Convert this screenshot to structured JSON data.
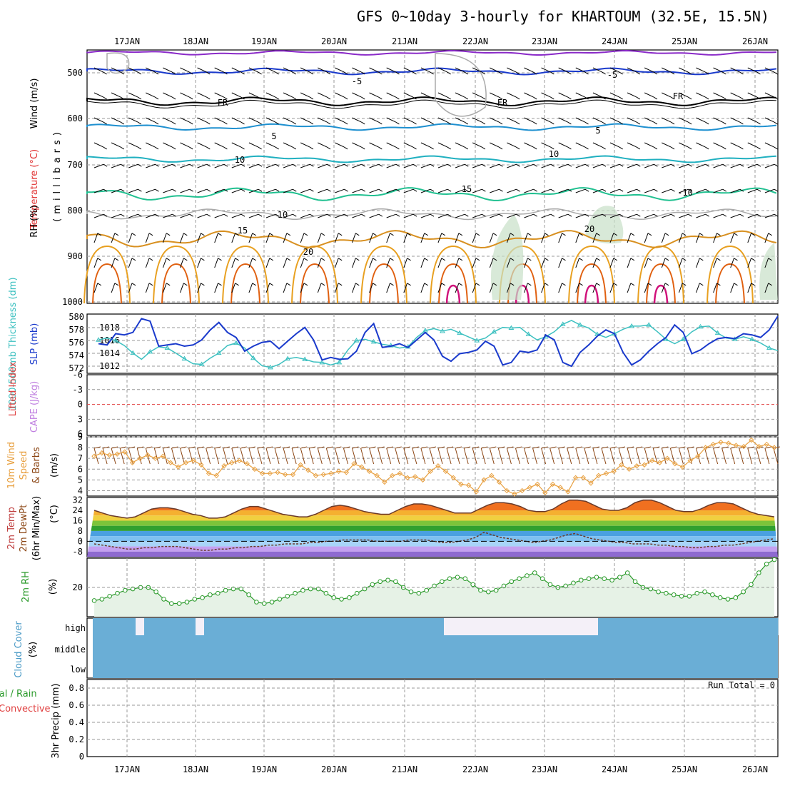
{
  "title": "GFS 0~10day 3-hourly for KHARTOUM (32.5E, 15.5N)",
  "days": [
    "17JAN",
    "18JAN",
    "19JAN",
    "20JAN",
    "21JAN",
    "22JAN",
    "23JAN",
    "24JAN",
    "25JAN",
    "26JAN"
  ],
  "colors": {
    "grid": "#aaaaaa",
    "temp_warm": "#e8a020",
    "temp_cool": "#1e90d0",
    "slp": "#1a3acc",
    "thickness": "#3cc0c0",
    "wind10": "#e8a040",
    "rh2m": "#2a9a2a",
    "cloud": "#6aaed6",
    "cape": "#c080e0",
    "lifted": "#e04040"
  },
  "panels": {
    "upper": {
      "ylabel1": "Wind (m/s)",
      "ylabel_temp": "Temperature (°C)",
      "ylabel_rh": "RH (%)",
      "ylabel_mb": "(millibars)",
      "levels": [
        "500",
        "600",
        "700",
        "800",
        "900",
        "1000"
      ],
      "contour_labels": [
        "-5",
        "FR",
        "FR",
        "FR",
        "-5",
        "5",
        "5",
        "10",
        "10",
        "15",
        "15",
        "20",
        "20",
        "-10",
        "10"
      ]
    },
    "slp": {
      "ylabel_left": "1000-500mb Thickness (dm)",
      "ylabel_right": "SLP (mb)",
      "left_ticks": [
        "580",
        "578",
        "576",
        "574",
        "572"
      ],
      "right_ticks": [
        "1018",
        "1016",
        "1014",
        "1012"
      ]
    },
    "cape": {
      "ylabel1": "Lifted Index",
      "ylabel2": "CAPE (J/kg)",
      "ticks": [
        "-6",
        "-3",
        "0",
        "3",
        "6"
      ]
    },
    "wind": {
      "ylabel1": "10m Wind",
      "ylabel2": "Speed",
      "ylabel3": "& Barbs",
      "unit": "(m/s)",
      "ticks": [
        "9",
        "8",
        "7",
        "6",
        "5",
        "4"
      ]
    },
    "temp": {
      "ylabel1": "2m Temp",
      "ylabel2": "2m DewPt",
      "ylabel3": "(6hr Min/Max)",
      "unit": "(°C)",
      "ticks": [
        "32",
        "24",
        "16",
        "8",
        "0",
        "-8"
      ]
    },
    "rh": {
      "ylabel": "2m RH",
      "unit": "(%)",
      "ticks": [
        "20"
      ]
    },
    "cloud": {
      "ylabel": "Cloud Cover",
      "unit": "(%)",
      "levels": [
        "high",
        "middle",
        "low"
      ]
    },
    "precip": {
      "ylabel1": "Total / Rain",
      "ylabel2": "Convective",
      "ylabel3": "3hr Precip (mm)",
      "ticks": [
        "0.8",
        "0.6",
        "0.4",
        "0.2",
        "0"
      ],
      "run_total": "Run Total = 0"
    }
  },
  "chart_data": [
    {
      "type": "line",
      "name": "1000-500mb Thickness (dm)",
      "units": "dm",
      "ylim": [
        571,
        580
      ],
      "values": [
        576.1,
        576.4,
        576.0,
        575.2,
        574.0,
        573.0,
        574.2,
        575.0,
        574.8,
        574.0,
        573.1,
        572.3,
        572.2,
        573.2,
        574.0,
        575.2,
        575.6,
        574.8,
        573.2,
        572.0,
        571.7,
        572.2,
        573.1,
        573.3,
        573.0,
        572.6,
        572.5,
        572.1,
        572.5,
        574.5,
        576.0,
        576.2,
        575.8,
        575.4,
        575.2,
        574.8,
        575.0,
        576.5,
        577.6,
        577.9,
        577.5,
        577.8,
        577.2,
        576.6,
        576.0,
        576.4,
        577.4,
        578.1,
        578.0,
        578.1,
        577.0,
        576.1,
        576.6,
        577.4,
        578.6,
        579.2,
        578.5,
        578.0,
        577.0,
        576.5,
        577.1,
        577.8,
        578.3,
        578.3,
        578.5,
        577.4,
        576.2,
        575.5,
        576.2,
        577.4,
        578.2,
        578.3,
        577.2,
        576.4,
        576.2,
        576.6,
        576.2,
        575.6,
        574.8,
        574.4
      ]
    },
    {
      "type": "line",
      "name": "SLP (mb)",
      "units": "mb",
      "ylim": [
        1010.5,
        1019.5
      ],
      "values": [
        1015.0,
        1014.8,
        1016.6,
        1016.4,
        1016.8,
        1019.0,
        1018.6,
        1014.6,
        1014.8,
        1015.0,
        1014.6,
        1014.8,
        1015.6,
        1017.2,
        1018.4,
        1016.8,
        1016.0,
        1013.8,
        1014.6,
        1015.2,
        1015.4,
        1014.2,
        1015.4,
        1016.6,
        1017.6,
        1015.6,
        1012.4,
        1012.8,
        1012.5,
        1012.6,
        1013.8,
        1016.8,
        1018.2,
        1014.4,
        1014.6,
        1015.0,
        1014.4,
        1015.6,
        1016.8,
        1015.6,
        1013.0,
        1012.2,
        1013.4,
        1013.6,
        1014.0,
        1015.4,
        1014.6,
        1011.6,
        1012.0,
        1013.8,
        1013.6,
        1014.0,
        1016.4,
        1015.6,
        1012.0,
        1011.4,
        1013.6,
        1014.8,
        1016.2,
        1017.2,
        1016.6,
        1013.6,
        1011.6,
        1012.4,
        1013.8,
        1015.0,
        1016.0,
        1018.0,
        1016.8,
        1013.4,
        1014.0,
        1015.0,
        1015.8,
        1016.0,
        1015.8,
        1016.6,
        1016.4,
        1016.0,
        1017.2,
        1019.4
      ]
    },
    {
      "type": "line",
      "name": "10m Wind Speed (m/s)",
      "units": "m/s",
      "ylim": [
        3.5,
        9
      ],
      "values": [
        7.2,
        7.5,
        7.3,
        7.4,
        7.6,
        6.6,
        7.0,
        7.3,
        7.0,
        7.2,
        6.6,
        6.2,
        6.6,
        6.8,
        6.4,
        5.6,
        5.4,
        6.3,
        6.6,
        6.8,
        6.5,
        6.0,
        5.6,
        5.6,
        5.7,
        5.5,
        5.5,
        6.4,
        5.9,
        5.4,
        5.5,
        5.6,
        5.8,
        5.7,
        6.5,
        6.2,
        5.8,
        5.4,
        4.8,
        5.4,
        5.6,
        5.2,
        5.3,
        5.0,
        5.8,
        6.3,
        5.8,
        5.2,
        4.6,
        4.5,
        3.9,
        5.0,
        5.4,
        4.8,
        4.0,
        3.7,
        4.0,
        4.3,
        4.6,
        3.8,
        4.6,
        4.3,
        3.9,
        5.2,
        5.2,
        4.7,
        5.4,
        5.6,
        5.8,
        6.4,
        6.0,
        6.3,
        6.4,
        6.8,
        6.6,
        7.0,
        6.5,
        6.2,
        6.8,
        7.2,
        8.0,
        8.3,
        8.5,
        8.4,
        8.2,
        8.1,
        8.7,
        8.1,
        8.3,
        8.0
      ]
    },
    {
      "type": "area",
      "name": "2m Temp (°C)",
      "units": "°C",
      "ylim": [
        -12,
        34
      ],
      "values": [
        24,
        22,
        20,
        19,
        18,
        19,
        22,
        25,
        26,
        26,
        25,
        23,
        21,
        20,
        18,
        18,
        19,
        22,
        25,
        27,
        27,
        25,
        23,
        21,
        20,
        19,
        19,
        21,
        24,
        27,
        28,
        27,
        25,
        23,
        22,
        21,
        21,
        24,
        27,
        29,
        29,
        28,
        26,
        24,
        22,
        22,
        22,
        25,
        28,
        30,
        30,
        29,
        27,
        24,
        23,
        23,
        25,
        29,
        32,
        32,
        31,
        28,
        25,
        24,
        24,
        26,
        30,
        32,
        32,
        30,
        27,
        24,
        23,
        23,
        25,
        28,
        30,
        30,
        29,
        26,
        23,
        21,
        20,
        19
      ]
    },
    {
      "type": "line",
      "name": "2m DewPt (°C)",
      "units": "°C",
      "ylim": [
        -12,
        34
      ],
      "values": [
        -2,
        -3,
        -4,
        -5,
        -6,
        -6,
        -5,
        -5,
        -4,
        -4,
        -4,
        -5,
        -6,
        -7,
        -7,
        -6,
        -6,
        -5,
        -5,
        -4,
        -4,
        -3,
        -3,
        -2,
        -2,
        -2,
        -1,
        -1,
        0,
        0,
        1,
        1,
        1,
        1,
        0,
        0,
        0,
        0,
        1,
        1,
        1,
        0,
        -1,
        -1,
        0,
        1,
        3,
        7,
        5,
        3,
        2,
        1,
        0,
        -1,
        0,
        1,
        3,
        5,
        6,
        4,
        2,
        1,
        0,
        -1,
        -1,
        -2,
        -2,
        -2,
        -3,
        -3,
        -4,
        -4,
        -5,
        -5,
        -4,
        -4,
        -3,
        -3,
        -2,
        -1,
        0,
        1,
        2
      ]
    },
    {
      "type": "area",
      "name": "2m RH (%)",
      "units": "%",
      "ylim": [
        0,
        40
      ],
      "values": [
        11,
        12,
        14,
        16,
        18,
        19,
        20,
        20,
        17,
        12,
        9,
        9,
        10,
        12,
        13,
        15,
        16,
        18,
        19,
        19,
        15,
        10,
        9,
        10,
        12,
        14,
        16,
        18,
        19,
        19,
        16,
        13,
        12,
        13,
        16,
        19,
        22,
        24,
        25,
        24,
        20,
        17,
        16,
        18,
        21,
        24,
        26,
        27,
        26,
        22,
        18,
        17,
        18,
        21,
        24,
        26,
        28,
        30,
        26,
        22,
        20,
        21,
        23,
        25,
        26,
        27,
        26,
        25,
        27,
        30,
        24,
        20,
        19,
        17,
        16,
        15,
        14,
        14,
        16,
        17,
        15,
        13,
        12,
        13,
        17,
        22,
        30,
        36,
        39
      ]
    },
    {
      "type": "bar",
      "name": "3hr Precip (mm)",
      "units": "mm",
      "ylim": [
        0,
        0.9
      ],
      "values": []
    }
  ]
}
